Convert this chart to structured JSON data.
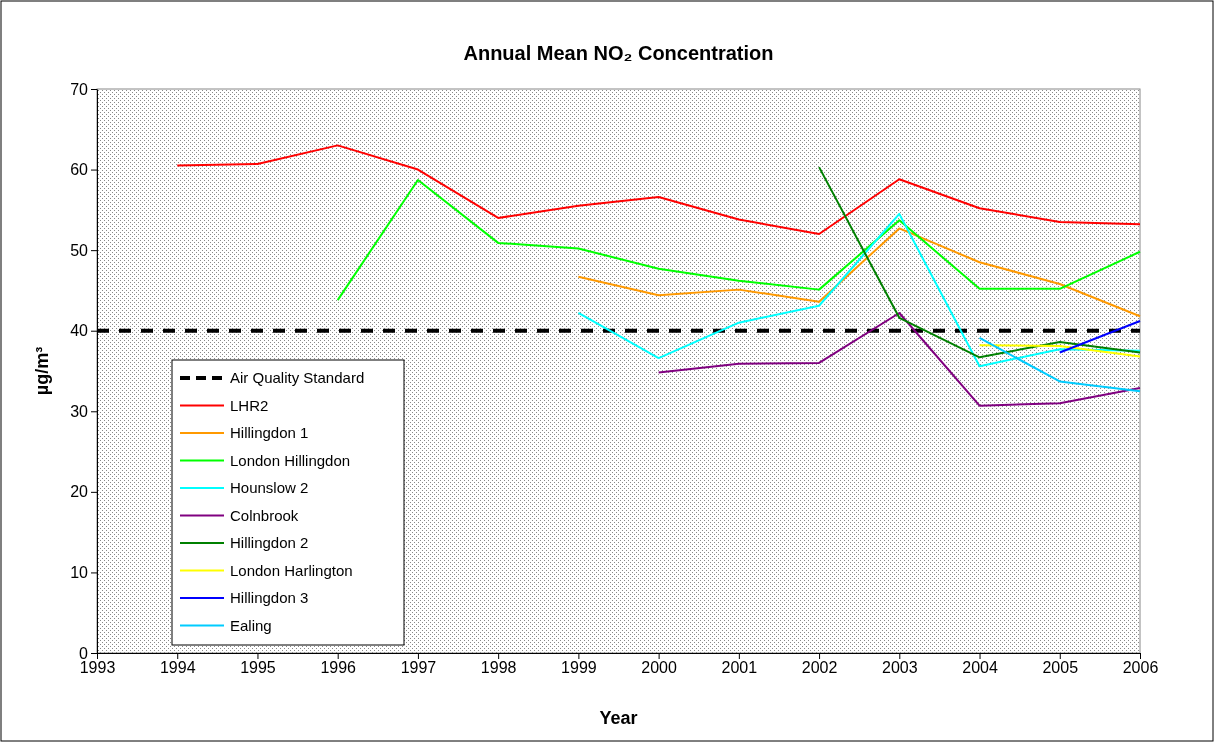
{
  "chart_data": {
    "type": "line",
    "title": "Annual Mean NO₂ Concentration",
    "xlabel": "Year",
    "ylabel": "µg/m³",
    "x": [
      1994,
      1995,
      1996,
      1997,
      1998,
      1999,
      2000,
      2001,
      2002,
      2003,
      2004,
      2005,
      2006
    ],
    "xlim": [
      1993,
      2006
    ],
    "xticks": [
      1993,
      1994,
      1995,
      1996,
      1997,
      1998,
      1999,
      2000,
      2001,
      2002,
      2003,
      2004,
      2005,
      2006
    ],
    "ylim": [
      0,
      70
    ],
    "yticks": [
      0,
      10,
      20,
      30,
      40,
      50,
      60,
      70
    ],
    "grid": false,
    "legend": "bottom left",
    "marker": "none",
    "line_style": "solid",
    "ref_lines": [
      {
        "axis": "y",
        "value": 40,
        "label": "Air Quality Standard",
        "color": "#000000",
        "line_style": "dashed"
      }
    ],
    "series": [
      {
        "name": "LHR2",
        "color": "#ff0000",
        "values": [
          60.5,
          60.7,
          63,
          60,
          54,
          55.5,
          56.6,
          53.8,
          52,
          58.8,
          55.2,
          53.5,
          53.2
        ]
      },
      {
        "name": "Hillingdon 1",
        "color": "#ff9900",
        "values": [
          null,
          null,
          null,
          null,
          null,
          46.7,
          44.4,
          45.1,
          43.6,
          52.7,
          48.5,
          45.8,
          41.8
        ]
      },
      {
        "name": "London Hillingdon",
        "color": "#00ff00",
        "values": [
          null,
          null,
          43.8,
          58.7,
          50.9,
          50.2,
          47.7,
          46.2,
          45.1,
          53.7,
          45.2,
          45.2,
          49.8
        ]
      },
      {
        "name": "Hounslow 2",
        "color": "#00ffff",
        "values": [
          null,
          null,
          null,
          null,
          null,
          42.2,
          36.6,
          41,
          43.1,
          54.5,
          35.6,
          37.7,
          37.5
        ]
      },
      {
        "name": "Colnbrook",
        "color": "#800080",
        "values": [
          null,
          null,
          null,
          null,
          null,
          null,
          34.8,
          35.9,
          36,
          42.2,
          30.7,
          31,
          32.9
        ]
      },
      {
        "name": "Hillingdon 2",
        "color": "#008000",
        "values": [
          null,
          null,
          null,
          null,
          null,
          null,
          null,
          null,
          60.3,
          41.6,
          36.7,
          38.6,
          37.3
        ]
      },
      {
        "name": "London Harlington",
        "color": "#ffff00",
        "values": [
          null,
          null,
          null,
          null,
          null,
          null,
          null,
          null,
          null,
          null,
          38.2,
          38.1,
          36.8
        ]
      },
      {
        "name": "Hillingdon 3",
        "color": "#0000ff",
        "values": [
          null,
          null,
          null,
          null,
          null,
          null,
          null,
          null,
          null,
          null,
          null,
          37.3,
          41.2
        ]
      },
      {
        "name": "Ealing",
        "color": "#00ccff",
        "values": [
          null,
          null,
          null,
          null,
          null,
          null,
          null,
          null,
          null,
          null,
          39.1,
          33.7,
          32.5
        ]
      }
    ]
  }
}
